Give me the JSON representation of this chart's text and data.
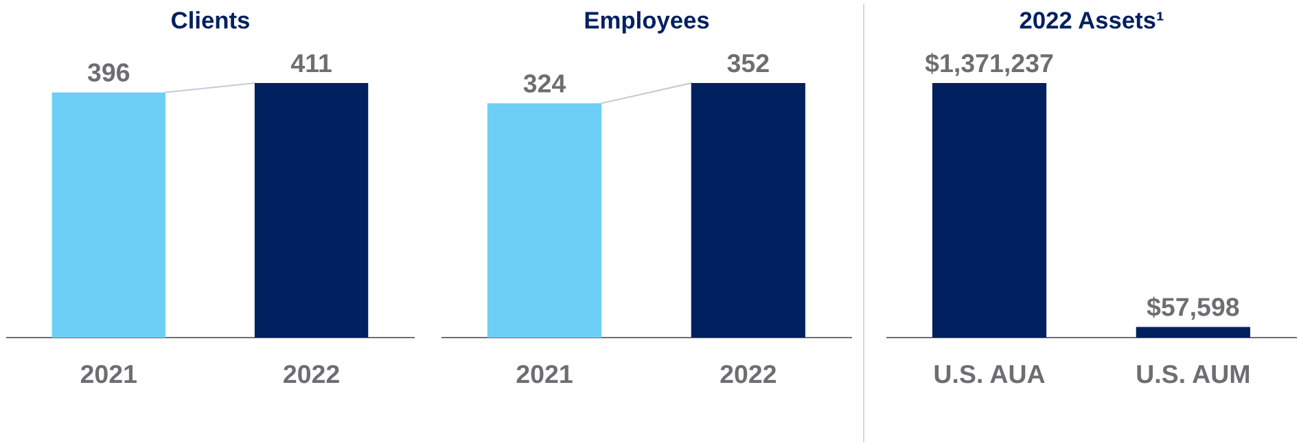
{
  "chart_data": [
    {
      "type": "bar",
      "title": "Clients",
      "categories": [
        "2021",
        "2022"
      ],
      "values": [
        396,
        411
      ],
      "colors": [
        "#6dcff6",
        "#002060"
      ],
      "value_labels": [
        "396",
        "411"
      ],
      "tick_labels": "x",
      "grid": false,
      "legend": false
    },
    {
      "type": "bar",
      "title": "Employees",
      "categories": [
        "2021",
        "2022"
      ],
      "values": [
        324,
        352
      ],
      "colors": [
        "#6dcff6",
        "#002060"
      ],
      "value_labels": [
        "324",
        "352"
      ],
      "tick_labels": "x",
      "grid": false,
      "legend": false
    },
    {
      "type": "bar",
      "title": "2022 Assets¹",
      "categories": [
        "U.S. AUA",
        "U.S. AUM"
      ],
      "values": [
        1371237,
        57598
      ],
      "colors": [
        "#002060",
        "#002060"
      ],
      "value_labels": [
        "$1,371,237",
        "$57,598"
      ],
      "tick_labels": "x",
      "grid": false,
      "legend": false
    }
  ]
}
